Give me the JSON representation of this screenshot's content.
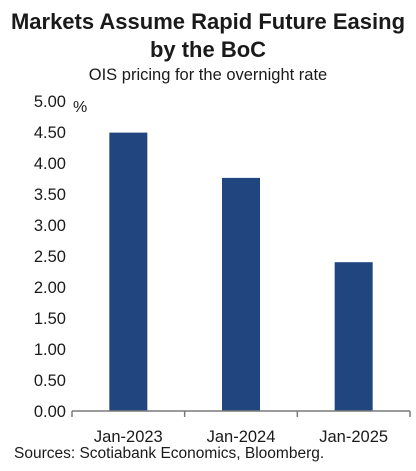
{
  "header": {
    "title_line1": "Markets Assume Rapid Future Easing",
    "title_line2": "by the BoC",
    "subtitle": "OIS pricing for the overnight rate"
  },
  "footer": {
    "source": "Sources: Scotiabank Economics, Bloomberg."
  },
  "colors": {
    "bar": "#21457e",
    "axis": "#7a7a7a"
  },
  "chart_data": {
    "type": "bar",
    "categories": [
      "Jan-2023",
      "Jan-2024",
      "Jan-2025"
    ],
    "values": [
      4.49,
      3.76,
      2.4
    ],
    "title": "Markets Assume Rapid Future Easing by the BoC",
    "subtitle": "OIS pricing for the overnight rate",
    "xlabel": "",
    "ylabel": "%",
    "ylim": [
      0,
      5
    ],
    "yticks": [
      "0.00",
      "0.50",
      "1.00",
      "1.50",
      "2.00",
      "2.50",
      "3.00",
      "3.50",
      "4.00",
      "4.50",
      "5.00"
    ],
    "grid": false,
    "legend": "none"
  }
}
